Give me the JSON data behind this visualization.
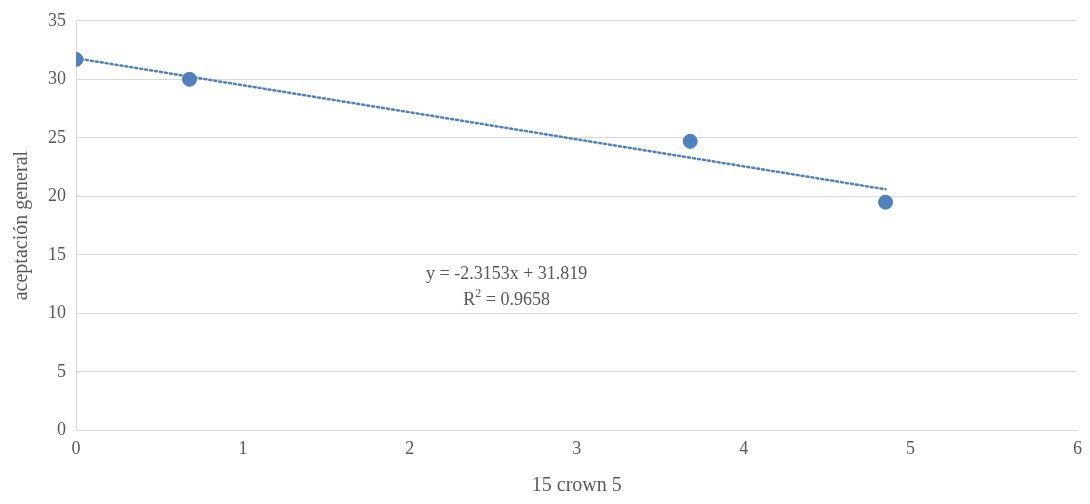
{
  "chart_data": {
    "type": "scatter",
    "xlabel": "15 crown 5",
    "ylabel": "aceptación general",
    "xlim": [
      0,
      6
    ],
    "xticks": [
      0,
      1,
      2,
      3,
      4,
      5,
      6
    ],
    "ylim": [
      0,
      35
    ],
    "yticks": [
      0,
      5,
      10,
      15,
      20,
      25,
      30,
      35
    ],
    "grid": "y",
    "legend": false,
    "series": [
      {
        "type": "scatter",
        "color": "#4f81bd",
        "marker": "circle",
        "x": [
          0,
          0.68,
          3.68,
          4.85
        ],
        "values": [
          31.7,
          30.0,
          24.7,
          19.5
        ]
      },
      {
        "type": "line",
        "color": "#4f81bd",
        "marker": "none",
        "line_style": "dotted",
        "x": [
          0,
          4.85
        ],
        "values": [
          31.8,
          20.6
        ]
      }
    ],
    "annotations": [
      "y = -2.3153x + 31.819",
      "R$^{2}$ = 0.9658"
    ]
  }
}
